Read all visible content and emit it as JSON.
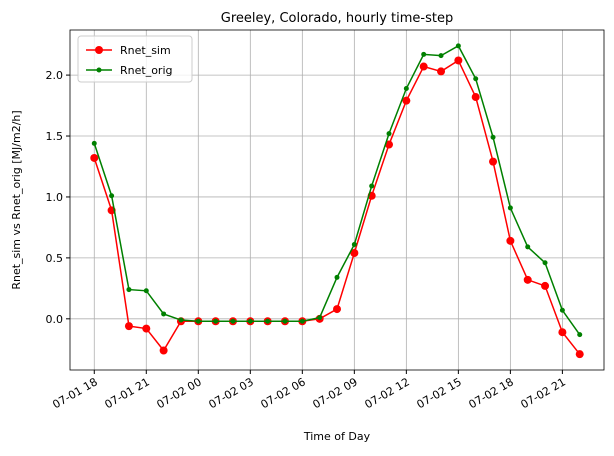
{
  "chart_data": {
    "type": "line",
    "title": "Greeley, Colorado, hourly time-step",
    "xlabel": "Time of Day",
    "ylabel": "Rnet_sim vs Rnet_orig [MJ/m2/h]",
    "x": [
      "07-01 18",
      "07-01 19",
      "07-01 20",
      "07-01 21",
      "07-01 22",
      "07-01 23",
      "07-02 00",
      "07-02 01",
      "07-02 02",
      "07-02 03",
      "07-02 04",
      "07-02 05",
      "07-02 06",
      "07-02 07",
      "07-02 08",
      "07-02 09",
      "07-02 10",
      "07-02 11",
      "07-02 12",
      "07-02 13",
      "07-02 14",
      "07-02 15",
      "07-02 16",
      "07-02 17",
      "07-02 18",
      "07-02 19",
      "07-02 20",
      "07-02 21",
      "07-02 22"
    ],
    "series": [
      {
        "name": "Rnet_sim",
        "color": "#ff0000",
        "marker_size": 4,
        "values": [
          1.32,
          0.89,
          -0.06,
          -0.08,
          -0.26,
          -0.02,
          -0.02,
          -0.02,
          -0.02,
          -0.02,
          -0.02,
          -0.02,
          -0.02,
          0.0,
          0.08,
          0.54,
          1.01,
          1.43,
          1.79,
          2.07,
          2.03,
          2.12,
          1.82,
          1.29,
          0.64,
          0.32,
          0.27,
          -0.11,
          -0.29
        ]
      },
      {
        "name": "Rnet_orig",
        "color": "#008000",
        "marker_size": 2.5,
        "values": [
          1.44,
          1.01,
          0.24,
          0.23,
          0.04,
          -0.01,
          -0.02,
          -0.02,
          -0.02,
          -0.02,
          -0.02,
          -0.02,
          -0.02,
          0.01,
          0.34,
          0.61,
          1.09,
          1.52,
          1.89,
          2.17,
          2.16,
          2.24,
          1.97,
          1.49,
          0.91,
          0.59,
          0.46,
          0.07,
          -0.13
        ]
      }
    ],
    "xticks": [
      "07-01 18",
      "07-01 21",
      "07-02 00",
      "07-02 03",
      "07-02 06",
      "07-02 09",
      "07-02 12",
      "07-02 15",
      "07-02 18",
      "07-02 21"
    ],
    "ylim": [
      -0.42,
      2.37
    ],
    "yticks": [
      {
        "value": 0,
        "label": "0.0"
      },
      0.5,
      {
        "value": 1,
        "label": "1.0"
      },
      1.5,
      {
        "value": 2,
        "label": "2.0"
      }
    ],
    "grid": true,
    "legend": "upper left"
  }
}
